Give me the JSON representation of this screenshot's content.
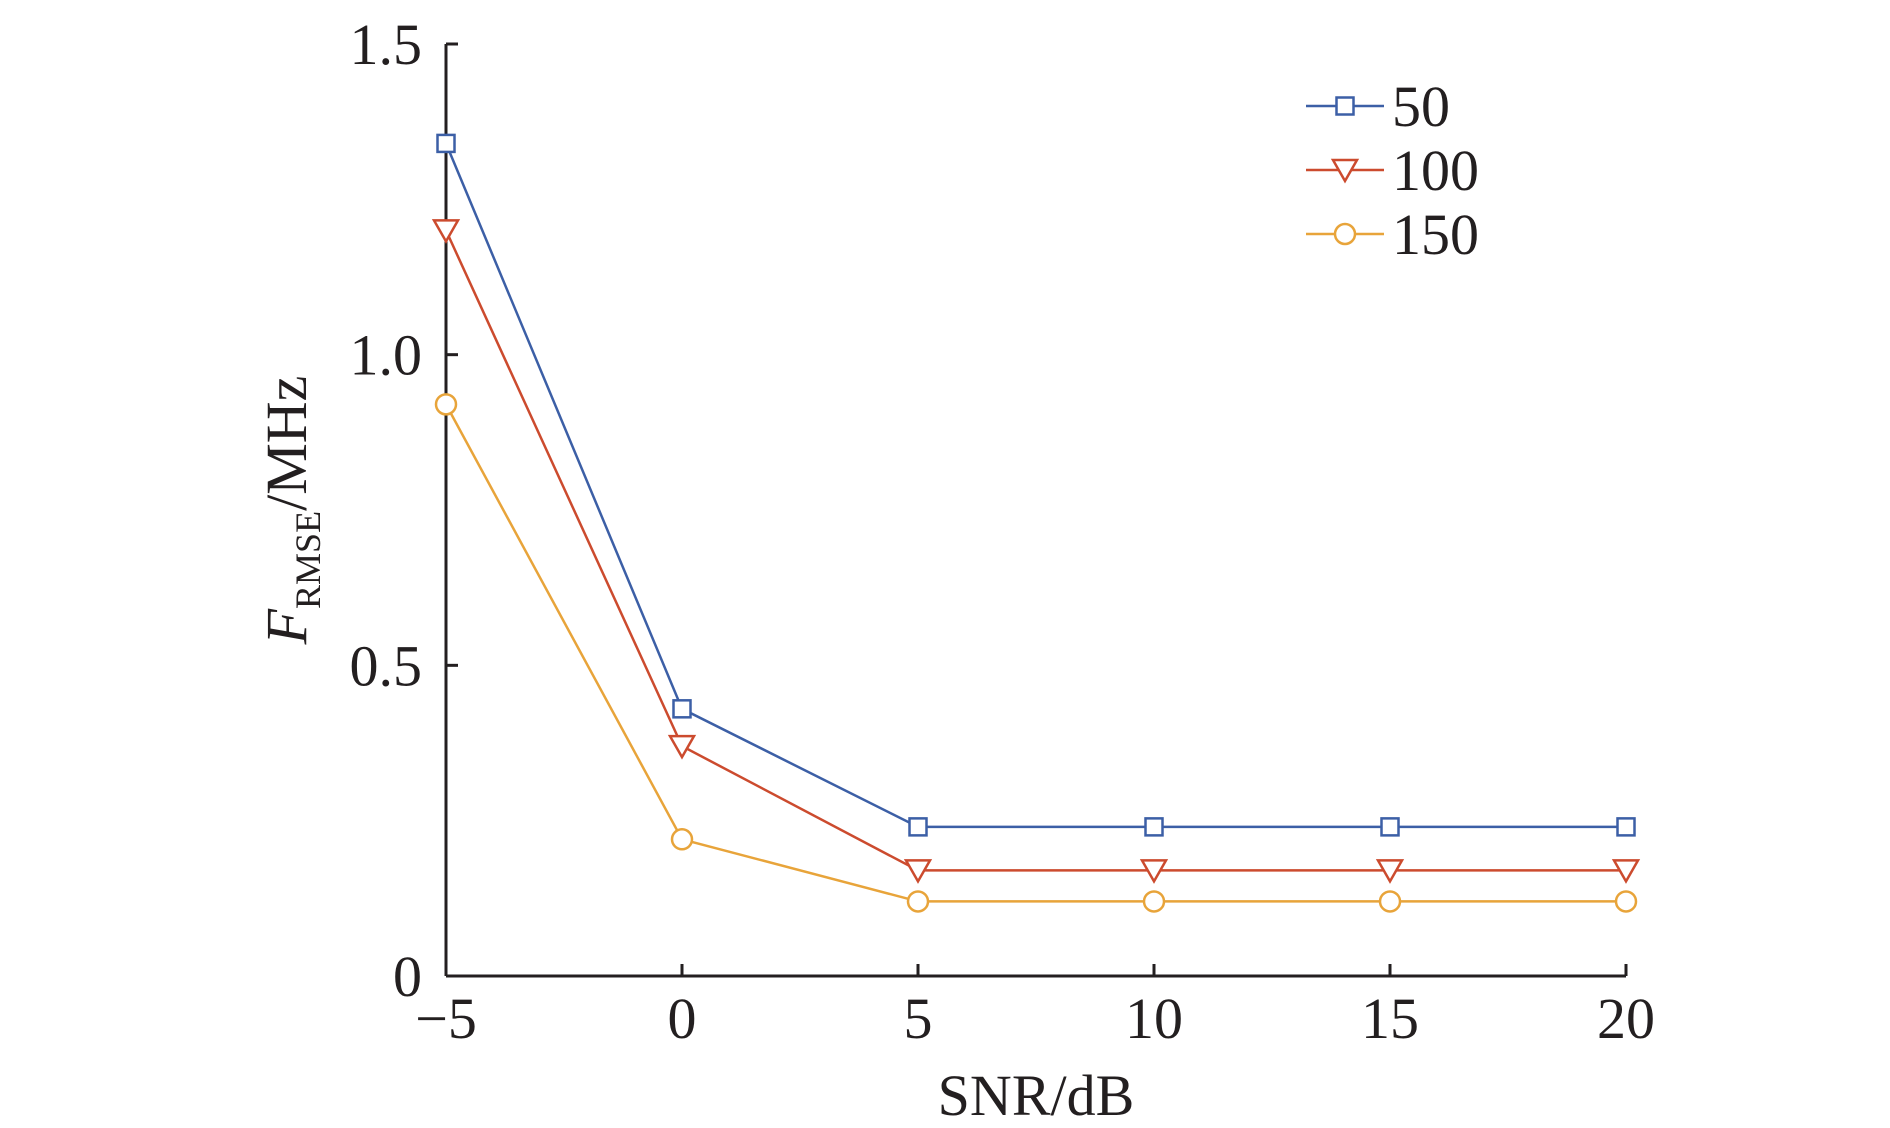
{
  "chart_data": {
    "type": "line",
    "xlabel": "SNR/dB",
    "ylabel": {
      "main": "F",
      "subscript": "RMSE",
      "unit": "/MHz"
    },
    "x": [
      -5,
      0,
      5,
      10,
      15,
      20
    ],
    "xticks": [
      "−5",
      "0",
      "5",
      "10",
      "15",
      "20"
    ],
    "yticks": [
      "0",
      "0.5",
      "1.0",
      "1.5"
    ],
    "xlim": [
      -5,
      20
    ],
    "ylim": [
      0,
      1.5
    ],
    "grid": false,
    "legend_position": "top-right",
    "series": [
      {
        "name": "50",
        "marker": "square",
        "color": "#3c5fa6",
        "values": [
          1.34,
          0.43,
          0.24,
          0.24,
          0.24,
          0.24
        ]
      },
      {
        "name": "100",
        "marker": "triangle-down",
        "color": "#cc4b2e",
        "values": [
          1.2,
          0.37,
          0.17,
          0.17,
          0.17,
          0.17
        ]
      },
      {
        "name": "150",
        "marker": "circle",
        "color": "#e8a43a",
        "values": [
          0.92,
          0.22,
          0.12,
          0.12,
          0.12,
          0.12
        ]
      }
    ]
  }
}
